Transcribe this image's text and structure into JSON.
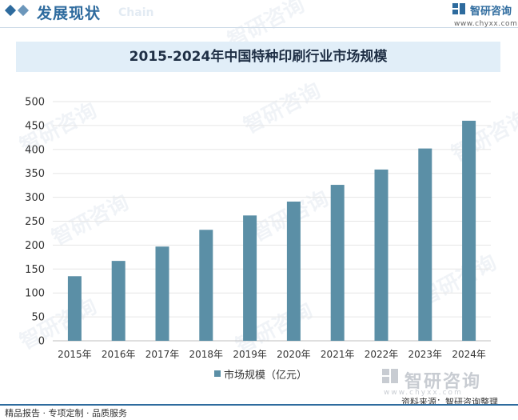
{
  "header": {
    "title": "发展现状",
    "ghost": "Chain",
    "logo_name": "智研咨询",
    "logo_url": "www.chyxx.com"
  },
  "watermark": {
    "text": "智研咨询",
    "bottom_name": "智研咨询",
    "bottom_url": "www.chyxx.com"
  },
  "source_note": "资料来源：智研咨询整理",
  "footer": {
    "text": "精品报告 · 专项定制 · 品质服务"
  },
  "colors": {
    "accent": "#2e6b9e",
    "bar": "#5b8fa6",
    "title_band": "#e1eef8"
  },
  "chart_data": {
    "type": "bar",
    "title": "2015-2024年中国特种印刷行业市场规模",
    "categories": [
      "2015年",
      "2016年",
      "2017年",
      "2018年",
      "2019年",
      "2020年",
      "2021年",
      "2022年",
      "2023年",
      "2024年"
    ],
    "series": [
      {
        "name": "市场规模（亿元）",
        "values": [
          135,
          167,
          197,
          232,
          262,
          291,
          326,
          358,
          402,
          460
        ]
      }
    ],
    "ylim": [
      0,
      500
    ],
    "yticks": [
      0,
      50,
      100,
      150,
      200,
      250,
      300,
      350,
      400,
      450,
      500
    ],
    "grid": true,
    "legend_position": "bottom"
  }
}
